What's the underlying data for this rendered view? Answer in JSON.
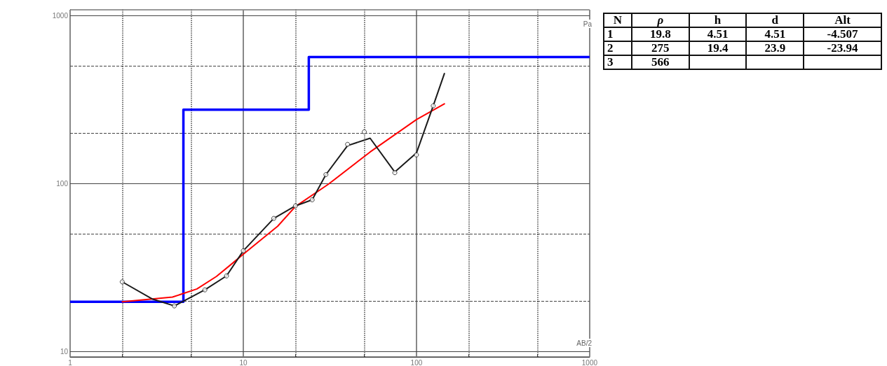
{
  "chart_data": [
    {
      "type": "line",
      "xlabel": "AB/2",
      "ylabel": "Pa",
      "log": "xy",
      "grid": true,
      "xlim": [
        1,
        1000
      ],
      "xticks": [
        1,
        {
          "value": 2,
          "label": null
        },
        {
          "value": 5,
          "label": null
        },
        10,
        {
          "value": 20,
          "label": null
        },
        {
          "value": 50,
          "label": null
        },
        100,
        {
          "value": 200,
          "label": null
        },
        {
          "value": 500,
          "label": null
        },
        1000
      ],
      "ylim": [
        9.3,
        1080
      ],
      "yticks": [
        10,
        {
          "value": 20,
          "label": null
        },
        {
          "value": 50,
          "label": null
        },
        100,
        {
          "value": 200,
          "label": null
        },
        {
          "value": 500,
          "label": null
        },
        1000
      ],
      "series": [
        {
          "type": "step",
          "color": "#0000ff",
          "marker": "none",
          "x": [
            1,
            4.51,
            23.9,
            1000
          ],
          "values": [
            19.8,
            275,
            566,
            566
          ]
        },
        {
          "type": "line",
          "color": "#ff0000",
          "marker": "none",
          "x": [
            2,
            2.5,
            3.9,
            5.4,
            7,
            8.5,
            10,
            15.8,
            20,
            31,
            54,
            100,
            145
          ],
          "values": [
            19.8,
            20.2,
            21.1,
            23.6,
            28,
            33,
            38,
            55.7,
            72.9,
            99,
            154,
            240,
            298
          ]
        },
        {
          "type": "line",
          "color": "#1a1a1a",
          "marker": "none",
          "x": [
            2,
            3,
            4,
            6,
            8,
            10,
            15,
            20,
            25,
            30,
            40,
            54,
            75,
            100,
            125,
            145
          ],
          "values": [
            26,
            20.5,
            18.7,
            23.3,
            28.2,
            39.8,
            62,
            73.6,
            80,
            113,
            168,
            186,
            117,
            152,
            290,
            451
          ]
        },
        {
          "type": "scatter",
          "color": "#1a1a1a",
          "marker": "circle",
          "x": [
            2,
            4,
            6,
            8,
            10,
            15,
            20,
            25,
            30,
            40,
            50,
            75,
            100,
            125
          ],
          "values": [
            26,
            18.7,
            23.3,
            28.2,
            39.8,
            62,
            73.6,
            80,
            113,
            171,
            203,
            116,
            148,
            290
          ]
        }
      ]
    },
    {
      "type": "other",
      "categories": [
        "N",
        "ρ",
        "h",
        "d",
        "Alt"
      ],
      "cells": [
        [
          "1",
          "19.8",
          "4.51",
          "4.51",
          "-4.507"
        ],
        [
          "2",
          "275",
          "19.4",
          "23.9",
          "-23.94"
        ],
        [
          "3",
          "566",
          null,
          null,
          null
        ]
      ]
    }
  ]
}
